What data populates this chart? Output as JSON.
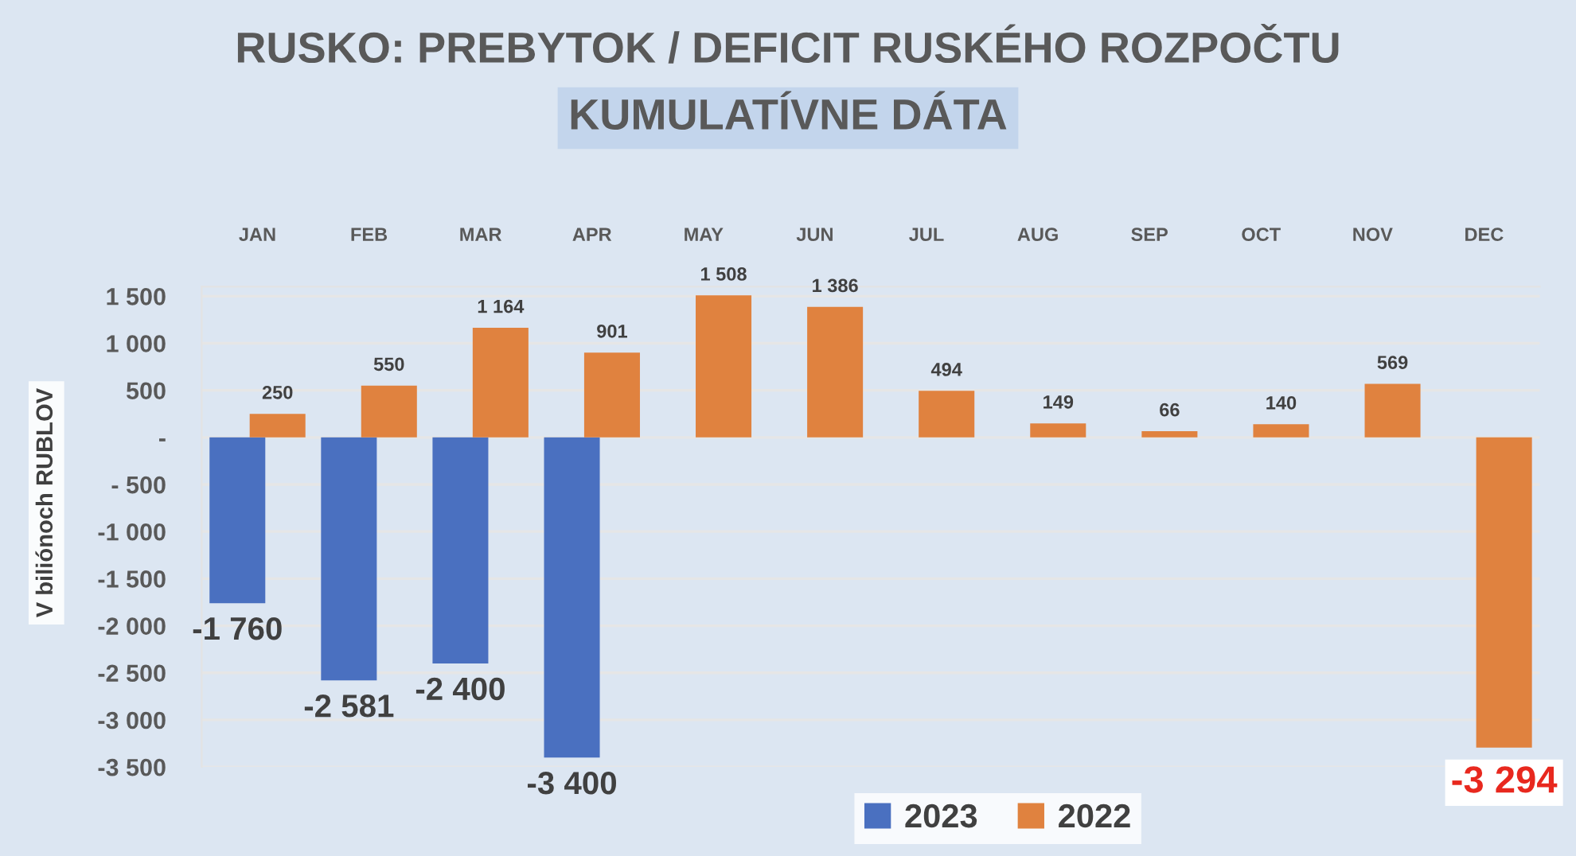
{
  "chart_data": {
    "type": "bar",
    "title": "RUSKO: PREBYTOK / DEFICIT RUSKÉHO ROZPOČTU",
    "subtitle": "KUMULATÍVNE DÁTA",
    "ylabel": "V biliónoch RUBLOV",
    "categories": [
      "JAN",
      "FEB",
      "MAR",
      "APR",
      "MAY",
      "JUN",
      "JUL",
      "AUG",
      "SEP",
      "OCT",
      "NOV",
      "DEC"
    ],
    "series": [
      {
        "name": "2023",
        "color": "#4a70c0",
        "values": [
          -1760,
          -2581,
          -2400,
          -3400,
          null,
          null,
          null,
          null,
          null,
          null,
          null,
          null
        ],
        "value_labels": [
          "-1 760",
          "-2 581",
          "-2 400",
          "-3 400",
          null,
          null,
          null,
          null,
          null,
          null,
          null,
          null
        ]
      },
      {
        "name": "2022",
        "color": "#e0823f",
        "values": [
          250,
          550,
          1164,
          901,
          1508,
          1386,
          494,
          149,
          66,
          140,
          569,
          -3294
        ],
        "value_labels": [
          "250",
          "550",
          "1 164",
          "901",
          "1 508",
          "1 386",
          "494",
          "149",
          "66",
          "140",
          "569",
          "-3 294"
        ]
      }
    ],
    "ylim": [
      -3500,
      1600
    ],
    "yticks": [
      {
        "value": -3500,
        "label": "-3 500"
      },
      {
        "value": -3000,
        "label": "-3 000"
      },
      {
        "value": -2500,
        "label": "-2 500"
      },
      {
        "value": -2000,
        "label": "-2 000"
      },
      {
        "value": -1500,
        "label": "-1 500"
      },
      {
        "value": -1000,
        "label": "-1 000"
      },
      {
        "value": -500,
        "label": "- 500"
      },
      {
        "value": 0,
        "label": "-"
      },
      {
        "value": 500,
        "label": "500"
      },
      {
        "value": 1000,
        "label": "1 000"
      },
      {
        "value": 1500,
        "label": "1 500"
      }
    ],
    "grid": "y",
    "legend": "bottom"
  }
}
